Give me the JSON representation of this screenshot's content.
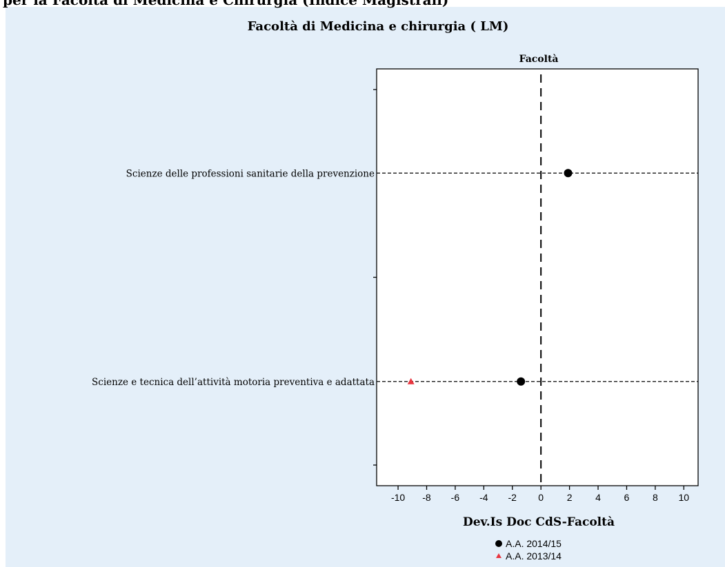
{
  "page": {
    "top_heading": "per la Facoltà di Medicina e Chirurgia (Indice Magistrali)"
  },
  "chart_data": {
    "type": "scatter",
    "title": "Facoltà di Medicina e chirurgia ( LM)",
    "panel_label": "Facoltà",
    "xlabel": "Dev.Is Doc CdS-Facoltà",
    "xlim": [
      -11.5,
      11
    ],
    "xticks": [
      -10,
      -8,
      -6,
      -4,
      -2,
      0,
      2,
      4,
      6,
      8,
      10
    ],
    "reference_line_x": 0,
    "categories": [
      "Scienze delle professioni sanitarie della prevenzione",
      "Scienze e tecnica dell’attività motoria preventiva e adattata"
    ],
    "series": [
      {
        "name": "A.A. 2014/15",
        "marker": "circle",
        "color": "#000000",
        "values": [
          1.9,
          -1.4
        ]
      },
      {
        "name": "A.A. 2013/14",
        "marker": "triangle",
        "color": "#e8353f",
        "values": [
          null,
          -9.1
        ]
      }
    ],
    "legend_position": "bottom-center"
  }
}
